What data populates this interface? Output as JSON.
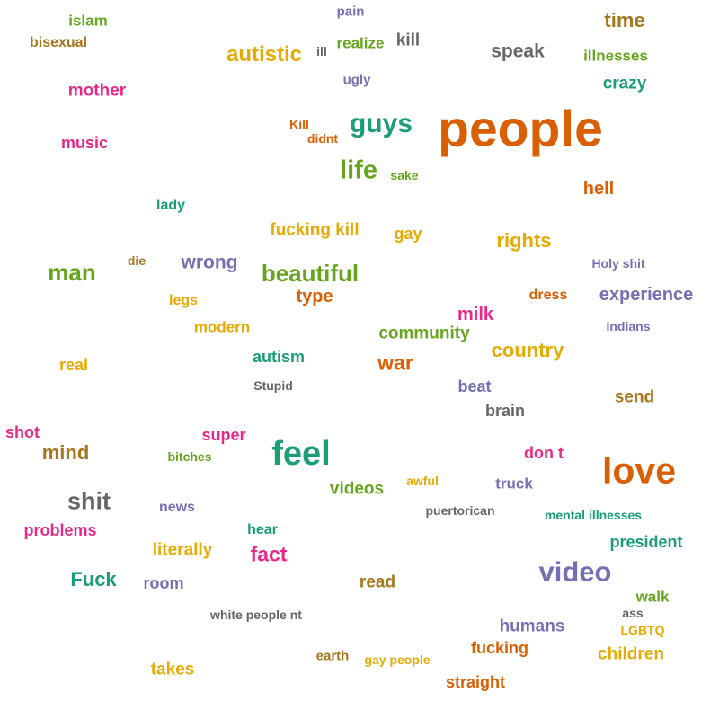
{
  "palette": {
    "green": "#66a61e",
    "orange": "#d95f02",
    "teal": "#1b9e77",
    "purple": "#7570b3",
    "pink": "#e7298a",
    "gold": "#e6ab02",
    "brown": "#a6761d",
    "gray": "#666666"
  },
  "words": [
    {
      "text": "islam",
      "color": "#66a61e"
    },
    {
      "text": "pain",
      "color": "#7570b3"
    },
    {
      "text": "time",
      "color": "#a6761d"
    },
    {
      "text": "bisexual",
      "color": "#a6761d"
    },
    {
      "text": "ill",
      "color": "#666666"
    },
    {
      "text": "realize",
      "color": "#66a61e"
    },
    {
      "text": "kill",
      "color": "#666666"
    },
    {
      "text": "autistic",
      "color": "#e6ab02"
    },
    {
      "text": "speak",
      "color": "#666666"
    },
    {
      "text": "illnesses",
      "color": "#66a61e"
    },
    {
      "text": "ugly",
      "color": "#7570b3"
    },
    {
      "text": "crazy",
      "color": "#1b9e77"
    },
    {
      "text": "mother",
      "color": "#e7298a"
    },
    {
      "text": "people",
      "color": "#d95f02"
    },
    {
      "text": "guys",
      "color": "#1b9e77"
    },
    {
      "text": "Kill",
      "color": "#d95f02"
    },
    {
      "text": "didnt",
      "color": "#d95f02"
    },
    {
      "text": "music",
      "color": "#e7298a"
    },
    {
      "text": "life",
      "color": "#66a61e"
    },
    {
      "text": "sake",
      "color": "#66a61e"
    },
    {
      "text": "hell",
      "color": "#d95f02"
    },
    {
      "text": "lady",
      "color": "#1b9e77"
    },
    {
      "text": "fucking kill",
      "color": "#e6ab02"
    },
    {
      "text": "gay",
      "color": "#e6ab02"
    },
    {
      "text": "rights",
      "color": "#e6ab02"
    },
    {
      "text": "die",
      "color": "#a6761d"
    },
    {
      "text": "wrong",
      "color": "#7570b3"
    },
    {
      "text": "Holy shit",
      "color": "#7570b3"
    },
    {
      "text": "man",
      "color": "#66a61e"
    },
    {
      "text": "beautiful",
      "color": "#66a61e"
    },
    {
      "text": "type",
      "color": "#d95f02"
    },
    {
      "text": "dress",
      "color": "#d95f02"
    },
    {
      "text": "experience",
      "color": "#7570b3"
    },
    {
      "text": "legs",
      "color": "#e6ab02"
    },
    {
      "text": "milk",
      "color": "#e7298a"
    },
    {
      "text": "modern",
      "color": "#e6ab02"
    },
    {
      "text": "community",
      "color": "#66a61e"
    },
    {
      "text": "Indians",
      "color": "#7570b3"
    },
    {
      "text": "country",
      "color": "#e6ab02"
    },
    {
      "text": "autism",
      "color": "#1b9e77"
    },
    {
      "text": "real",
      "color": "#e6ab02"
    },
    {
      "text": "war",
      "color": "#d95f02"
    },
    {
      "text": "Stupid",
      "color": "#666666"
    },
    {
      "text": "beat",
      "color": "#7570b3"
    },
    {
      "text": "send",
      "color": "#a6761d"
    },
    {
      "text": "brain",
      "color": "#666666"
    },
    {
      "text": "shot",
      "color": "#e7298a"
    },
    {
      "text": "super",
      "color": "#e7298a"
    },
    {
      "text": "mind",
      "color": "#a6761d"
    },
    {
      "text": "bitches",
      "color": "#66a61e"
    },
    {
      "text": "feel",
      "color": "#1b9e77"
    },
    {
      "text": "don t",
      "color": "#e7298a"
    },
    {
      "text": "love",
      "color": "#d95f02"
    },
    {
      "text": "awful",
      "color": "#e6ab02"
    },
    {
      "text": "truck",
      "color": "#7570b3"
    },
    {
      "text": "videos",
      "color": "#66a61e"
    },
    {
      "text": "shit",
      "color": "#666666"
    },
    {
      "text": "news",
      "color": "#7570b3"
    },
    {
      "text": "puertorican",
      "color": "#666666"
    },
    {
      "text": "mental illnesses",
      "color": "#1b9e77"
    },
    {
      "text": "problems",
      "color": "#e7298a"
    },
    {
      "text": "hear",
      "color": "#1b9e77"
    },
    {
      "text": "president",
      "color": "#1b9e77"
    },
    {
      "text": "literally",
      "color": "#e6ab02"
    },
    {
      "text": "fact",
      "color": "#e7298a"
    },
    {
      "text": "video",
      "color": "#7570b3"
    },
    {
      "text": "Fuck",
      "color": "#1b9e77"
    },
    {
      "text": "room",
      "color": "#7570b3"
    },
    {
      "text": "read",
      "color": "#a6761d"
    },
    {
      "text": "walk",
      "color": "#66a61e"
    },
    {
      "text": "white people nt",
      "color": "#666666"
    },
    {
      "text": "ass",
      "color": "#666666"
    },
    {
      "text": "humans",
      "color": "#7570b3"
    },
    {
      "text": "LGBTQ",
      "color": "#e6ab02"
    },
    {
      "text": "fucking",
      "color": "#d95f02"
    },
    {
      "text": "earth",
      "color": "#a6761d"
    },
    {
      "text": "children",
      "color": "#e6ab02"
    },
    {
      "text": "gay people",
      "color": "#e6ab02"
    },
    {
      "text": "takes",
      "color": "#e6ab02"
    },
    {
      "text": "straight",
      "color": "#d95f02"
    }
  ]
}
